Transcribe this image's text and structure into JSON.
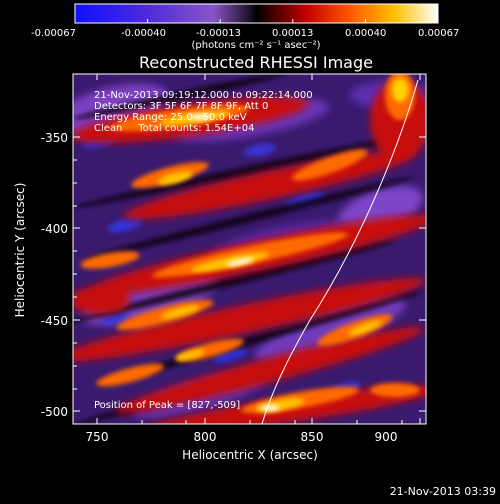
{
  "colorbar": {
    "tick_labels": [
      "-0.00067",
      "-0.00040",
      "-0.00013",
      "0.00013",
      "0.00040",
      "0.00067"
    ],
    "unit": "(photons cm⁻² s⁻¹ asec⁻²)"
  },
  "plot": {
    "title": "Reconstructed RHESSI Image",
    "info_lines": [
      "21-Nov-2013 09:19:12.000 to 09:22:14.000",
      "Detectors: 3F 5F 6F 7F 8F 9F, Att 0",
      "Energy Range: 25.0 - 50.0 keV",
      "Clean     Total counts: 1.54E+04"
    ],
    "peak_label": "Position of Peak = [827,-509]",
    "xlabel": "Heliocentric X (arcsec)",
    "ylabel": "Heliocentric Y (arcsec)",
    "x_ticks": [
      "750",
      "800",
      "850",
      "900"
    ],
    "y_ticks": [
      "-350",
      "-400",
      "-450",
      "-500"
    ]
  },
  "timestamp": "21-Nov-2013 03:39"
}
